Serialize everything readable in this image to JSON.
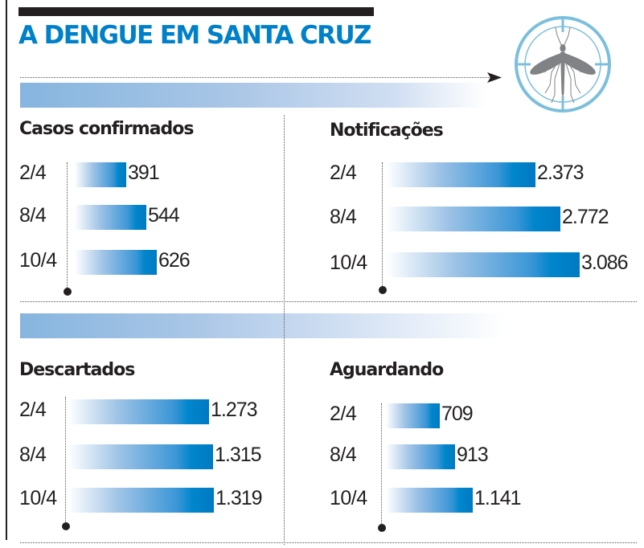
{
  "header": {
    "title": "A DENGUE EM SANTA CRUZ",
    "icon": "mosquito-target-icon",
    "accent_color": "#0080c8",
    "icon_ring_color": "#7cbfdc",
    "mosquito_color": "#808285"
  },
  "chart_data": [
    {
      "type": "bar",
      "orientation": "horizontal",
      "title": "Casos confirmados",
      "categories": [
        "2/4",
        "8/4",
        "10/4"
      ],
      "values": [
        391,
        544,
        626
      ],
      "labels": [
        "391",
        "544",
        "626"
      ]
    },
    {
      "type": "bar",
      "orientation": "horizontal",
      "title": "Notificações",
      "categories": [
        "2/4",
        "8/4",
        "10/4"
      ],
      "values": [
        2373,
        2772,
        3086
      ],
      "labels": [
        "2.373",
        "2.772",
        "3.086"
      ]
    },
    {
      "type": "bar",
      "orientation": "horizontal",
      "title": "Descartados",
      "categories": [
        "2/4",
        "8/4",
        "10/4"
      ],
      "values": [
        1273,
        1315,
        1319
      ],
      "labels": [
        "1.273",
        "1.315",
        "1.319"
      ]
    },
    {
      "type": "bar",
      "orientation": "horizontal",
      "title": "Aguardando",
      "categories": [
        "2/4",
        "8/4",
        "10/4"
      ],
      "values": [
        709,
        913,
        1141
      ],
      "labels": [
        "709",
        "913",
        "1.141"
      ]
    }
  ]
}
